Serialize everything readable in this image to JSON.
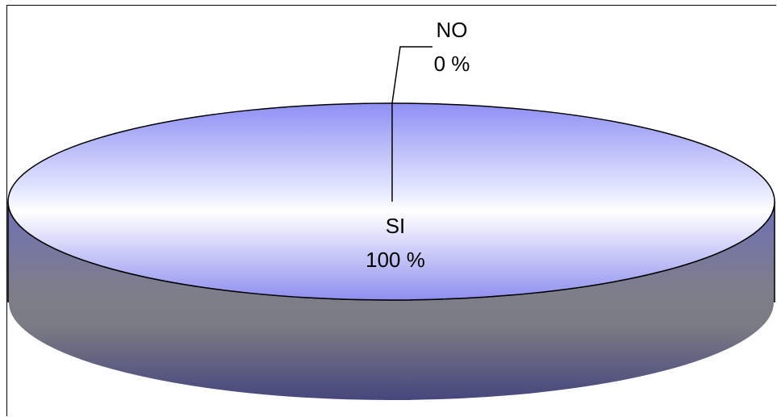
{
  "chart_data": {
    "type": "pie",
    "style": "3d",
    "slices": [
      {
        "name": "SI",
        "label": "100 %",
        "value": 100,
        "color": "#a7a7ff"
      },
      {
        "name": "NO",
        "label": "0 %",
        "value": 0,
        "color": "#8080c0"
      }
    ],
    "title": "",
    "legend": "none"
  }
}
